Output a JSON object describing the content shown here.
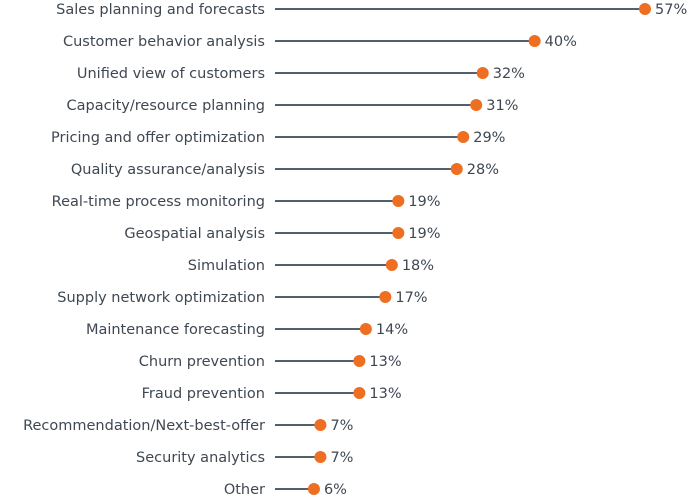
{
  "chart_data": {
    "type": "lollipop",
    "orientation": "horizontal",
    "title": "",
    "xlabel": "",
    "ylabel": "",
    "xlim": [
      0,
      57
    ],
    "grid": false,
    "value_suffix": "%",
    "categories": [
      "Sales planning and forecasts",
      "Customer behavior analysis",
      "Unified view of customers",
      "Capacity/resource planning",
      "Pricing and offer optimization",
      "Quality assurance/analysis",
      "Real-time process monitoring",
      "Geospatial analysis",
      "Simulation",
      "Supply network optimization",
      "Maintenance forecasting",
      "Churn prevention",
      "Fraud prevention",
      "Recommendation/Next-best-offer",
      "Security analytics",
      "Other"
    ],
    "values": [
      57,
      40,
      32,
      31,
      29,
      28,
      19,
      19,
      18,
      17,
      14,
      13,
      13,
      7,
      7,
      6
    ],
    "data_labels": [
      "57%",
      "40%",
      "32%",
      "31%",
      "29%",
      "28%",
      "19%",
      "19%",
      "18%",
      "17%",
      "14%",
      "13%",
      "13%",
      "7%",
      "7%",
      "6%"
    ],
    "colors": {
      "stem": "#56606d",
      "dot": "#ee6f22",
      "text": "#3f4852"
    }
  }
}
